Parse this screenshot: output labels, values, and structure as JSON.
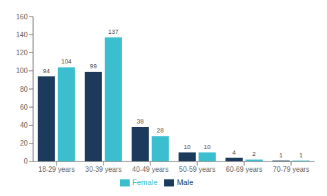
{
  "chart_data": {
    "type": "bar",
    "categories": [
      "18-29 years",
      "30-39 years",
      "40-49 years",
      "50-59 years",
      "60-69 years",
      "70-79 years"
    ],
    "series": [
      {
        "name": "Male",
        "color": "#1b3a5c",
        "values": [
          94,
          99,
          38,
          10,
          4,
          1
        ]
      },
      {
        "name": "Female",
        "color": "#3bbfce",
        "values": [
          104,
          137,
          28,
          10,
          2,
          1
        ]
      }
    ],
    "ylim": [
      0,
      160
    ],
    "yticks": [
      0,
      20,
      40,
      60,
      80,
      100,
      120,
      140,
      160
    ],
    "grid": false,
    "legend": "bottom",
    "data_labels": true
  }
}
